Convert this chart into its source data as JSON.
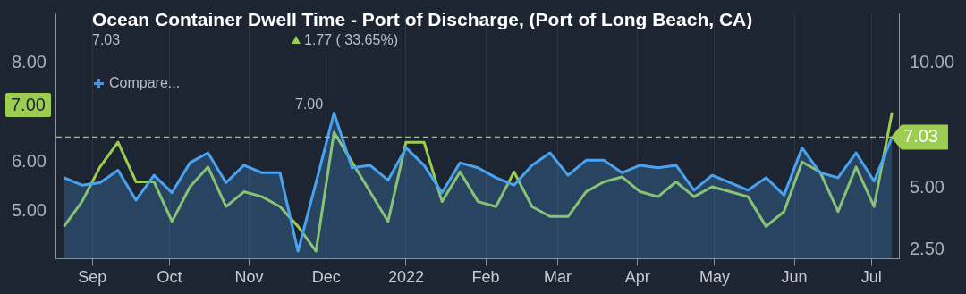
{
  "chart_data": {
    "type": "line",
    "title": "Ocean Container Dwell Time - Port of Discharge, (Port of Long Beach, CA)",
    "x": [
      "2021-08-21",
      "2021-08-28",
      "2021-09-04",
      "2021-09-11",
      "2021-09-18",
      "2021-09-25",
      "2021-10-02",
      "2021-10-09",
      "2021-10-16",
      "2021-10-23",
      "2021-10-30",
      "2021-11-06",
      "2021-11-13",
      "2021-11-20",
      "2021-11-27",
      "2021-12-04",
      "2021-12-11",
      "2021-12-18",
      "2021-12-25",
      "2022-01-01",
      "2022-01-08",
      "2022-01-15",
      "2022-01-22",
      "2022-01-29",
      "2022-02-05",
      "2022-02-12",
      "2022-02-19",
      "2022-02-26",
      "2022-03-05",
      "2022-03-12",
      "2022-03-19",
      "2022-03-26",
      "2022-04-02",
      "2022-04-09",
      "2022-04-16",
      "2022-04-23",
      "2022-04-30",
      "2022-05-07",
      "2022-05-14",
      "2022-05-21",
      "2022-05-28",
      "2022-06-04",
      "2022-06-11",
      "2022-06-18",
      "2022-06-25",
      "2022-07-02",
      "2022-07-09"
    ],
    "series": [
      {
        "type": "area",
        "axis": "y2",
        "color": "#4aa3f0",
        "values": [
          5.4,
          5.1,
          5.2,
          5.7,
          4.5,
          5.5,
          4.8,
          6.0,
          6.4,
          5.2,
          5.9,
          5.6,
          5.6,
          2.45,
          5.2,
          8.0,
          5.8,
          5.9,
          5.3,
          6.6,
          5.9,
          4.8,
          6.0,
          5.8,
          5.4,
          5.1,
          5.9,
          6.4,
          5.5,
          6.1,
          6.1,
          5.6,
          5.9,
          5.8,
          5.9,
          4.9,
          5.5,
          5.2,
          4.9,
          5.4,
          4.7,
          6.6,
          5.6,
          5.4,
          6.4,
          5.26,
          7.03
        ]
      },
      {
        "axis": "y",
        "color": "#9ccc50",
        "values": [
          4.7,
          5.2,
          5.9,
          6.4,
          5.6,
          5.6,
          4.8,
          5.5,
          5.9,
          5.1,
          5.4,
          5.3,
          5.1,
          4.7,
          4.2,
          6.6,
          6.0,
          5.4,
          4.8,
          6.4,
          6.4,
          5.2,
          5.8,
          5.2,
          5.1,
          5.8,
          5.1,
          4.9,
          4.9,
          5.4,
          5.6,
          5.7,
          5.4,
          5.3,
          5.6,
          5.3,
          5.5,
          5.4,
          5.3,
          4.7,
          5.0,
          6.0,
          5.8,
          5.0,
          5.9,
          5.1,
          7.0
        ]
      }
    ],
    "xlim": [
      "2021-08-18",
      "2022-07-12"
    ],
    "xticks": [
      {
        "value": "2021-09-01",
        "label": "Sep"
      },
      {
        "value": "2021-10-01",
        "label": "Oct"
      },
      {
        "value": "2021-11-01",
        "label": "Nov"
      },
      {
        "value": "2021-12-01",
        "label": "Dec"
      },
      {
        "value": "2022-01-01",
        "label": "2022"
      },
      {
        "value": "2022-02-01",
        "label": "Feb"
      },
      {
        "value": "2022-03-01",
        "label": "Mar"
      },
      {
        "value": "2022-04-01",
        "label": "Apr"
      },
      {
        "value": "2022-05-01",
        "label": "May"
      },
      {
        "value": "2022-06-01",
        "label": "Jun"
      },
      {
        "value": "2022-07-01",
        "label": "Jul"
      }
    ],
    "ylim": [
      4.05,
      9.0
    ],
    "yticks": [
      {
        "value": 5,
        "label": "5.00"
      },
      {
        "value": 6,
        "label": "6.00"
      },
      {
        "value": 8,
        "label": "8.00"
      }
    ],
    "y2lim": [
      2.15,
      12.0
    ],
    "y2ticks": [
      {
        "value": 2.5,
        "label": "2.50"
      },
      {
        "value": 5,
        "label": "5.00"
      },
      {
        "value": 10,
        "label": "10.00"
      }
    ],
    "ref_lines": [
      {
        "axis": "y2",
        "value": 7.03,
        "label": "7.03",
        "color": "#9ccc50",
        "line_style": "dashed"
      }
    ],
    "annotations": [
      "7.03",
      "1.77 ( 33.65%)",
      "Compare...",
      "7.00",
      "7.00"
    ],
    "grid": "x",
    "legend": false,
    "marker": "none",
    "line_style": "solid"
  }
}
